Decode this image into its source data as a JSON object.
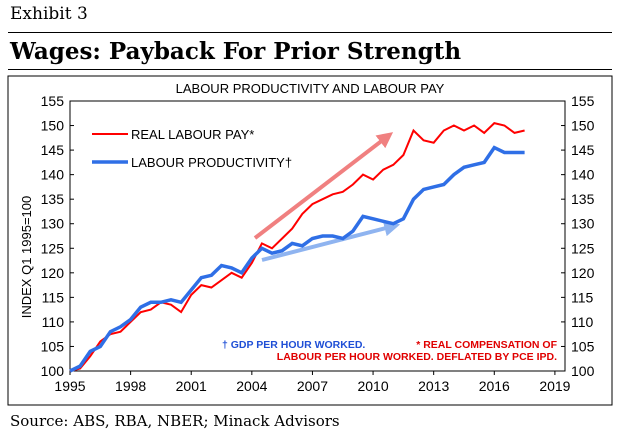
{
  "exhibit": "Exhibit 3",
  "headline": "Wages: Payback For Prior Strength",
  "source": "Source: ABS, RBA, NBER; Minack Advisors",
  "chart_data": {
    "type": "line",
    "title": "LABOUR PRODUCTIVITY AND LABOUR PAY",
    "ylabel": "INDEX Q1 1995=100",
    "xlim": [
      1995,
      2019.5
    ],
    "ylim": [
      100,
      155
    ],
    "x_ticks": [
      "1995",
      "1998",
      "2001",
      "2004",
      "2007",
      "2010",
      "2013",
      "2016",
      "2019"
    ],
    "y_ticks": [
      "100",
      "105",
      "110",
      "115",
      "120",
      "125",
      "130",
      "135",
      "140",
      "145",
      "150",
      "155"
    ],
    "colors": {
      "pay": "#ff0000",
      "productivity": "#2f6fe6",
      "pay_arrow": "#f08080",
      "productivity_arrow": "#8fb4f0",
      "note_blue": "#1f4fd6",
      "note_red": "#e00000"
    },
    "series": [
      {
        "name": "REAL LABOUR PAY*",
        "x": [
          1995.0,
          1995.5,
          1996.0,
          1996.5,
          1997.0,
          1997.5,
          1998.0,
          1998.5,
          1999.0,
          1999.5,
          2000.0,
          2000.5,
          2001.0,
          2001.5,
          2002.0,
          2002.5,
          2003.0,
          2003.5,
          2004.0,
          2004.5,
          2005.0,
          2005.5,
          2006.0,
          2006.5,
          2007.0,
          2007.5,
          2008.0,
          2008.5,
          2009.0,
          2009.5,
          2010.0,
          2010.5,
          2011.0,
          2011.5,
          2012.0,
          2012.5,
          2013.0,
          2013.5,
          2014.0,
          2014.5,
          2015.0,
          2015.5,
          2016.0,
          2016.5,
          2017.0,
          2017.5
        ],
        "values": [
          100.0,
          100.5,
          103.0,
          106.0,
          107.5,
          108.0,
          110.0,
          112.0,
          112.5,
          114.0,
          113.5,
          112.0,
          115.5,
          117.5,
          117.0,
          118.5,
          120.0,
          119.0,
          122.0,
          126.0,
          125.0,
          127.0,
          129.0,
          132.0,
          134.0,
          135.0,
          136.0,
          136.5,
          138.0,
          140.0,
          139.0,
          141.0,
          142.0,
          144.0,
          149.0,
          147.0,
          146.5,
          149.0,
          150.0,
          149.0,
          150.0,
          148.5,
          150.5,
          150.0,
          148.5,
          149.0
        ]
      },
      {
        "name": "LABOUR PRODUCTIVITY†",
        "x": [
          1995.0,
          1995.5,
          1996.0,
          1996.5,
          1997.0,
          1997.5,
          1998.0,
          1998.5,
          1999.0,
          1999.5,
          2000.0,
          2000.5,
          2001.0,
          2001.5,
          2002.0,
          2002.5,
          2003.0,
          2003.5,
          2004.0,
          2004.5,
          2005.0,
          2005.5,
          2006.0,
          2006.5,
          2007.0,
          2007.5,
          2008.0,
          2008.5,
          2009.0,
          2009.5,
          2010.0,
          2010.5,
          2011.0,
          2011.5,
          2012.0,
          2012.5,
          2013.0,
          2013.5,
          2014.0,
          2014.5,
          2015.0,
          2015.5,
          2016.0,
          2016.5,
          2017.0,
          2017.5
        ],
        "values": [
          100.0,
          101.0,
          104.0,
          105.0,
          108.0,
          109.0,
          110.5,
          113.0,
          114.0,
          114.0,
          114.5,
          114.0,
          116.5,
          119.0,
          119.5,
          121.5,
          121.0,
          120.0,
          123.0,
          125.0,
          124.0,
          124.5,
          126.0,
          125.5,
          127.0,
          127.5,
          127.5,
          127.0,
          128.5,
          131.5,
          131.0,
          130.5,
          130.0,
          131.0,
          135.0,
          137.0,
          137.5,
          138.0,
          140.0,
          141.5,
          142.0,
          142.5,
          145.5,
          144.5,
          144.5,
          144.5
        ]
      }
    ],
    "annotations": {
      "note_blue": "† GDP PER HOUR WORKED.",
      "note_red_1": "* REAL COMPENSATION OF",
      "note_red_2": "LABOUR PER HOUR WORKED. DEFLATED BY PCE IPD."
    },
    "grid": false,
    "legend_position": "top-left"
  }
}
